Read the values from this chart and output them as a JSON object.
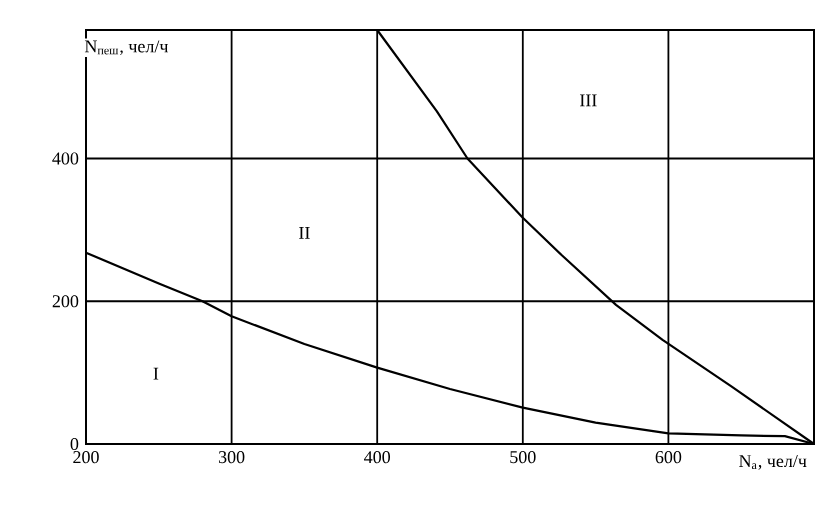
{
  "chart_data": {
    "type": "line",
    "xlabel": "N$_{а}$, чел/ч",
    "ylabel": "N$_{пеш}$, чел/ч",
    "xlim": [
      200,
      700
    ],
    "ylim": [
      0,
      580
    ],
    "xticks": [
      200,
      300,
      400,
      500,
      600
    ],
    "yticks": [
      0,
      200,
      400
    ],
    "grid": true,
    "marker": "none",
    "line_style": "solid",
    "series": [
      {
        "color": "#000000",
        "x": [
          200,
          250,
          280,
          300,
          350,
          400,
          450,
          500,
          550,
          600,
          650,
          680,
          700
        ],
        "values": [
          268,
          225,
          200,
          179,
          140,
          107,
          77,
          51,
          30,
          15,
          12,
          11,
          0
        ]
      },
      {
        "color": "#000000",
        "x": [
          400,
          441,
          462,
          500,
          527,
          564,
          596,
          643,
          700
        ],
        "values": [
          580,
          466,
          400,
          317,
          264,
          195,
          146,
          81,
          0
        ]
      }
    ],
    "annotations": [
      "I",
      "II",
      "III"
    ]
  }
}
